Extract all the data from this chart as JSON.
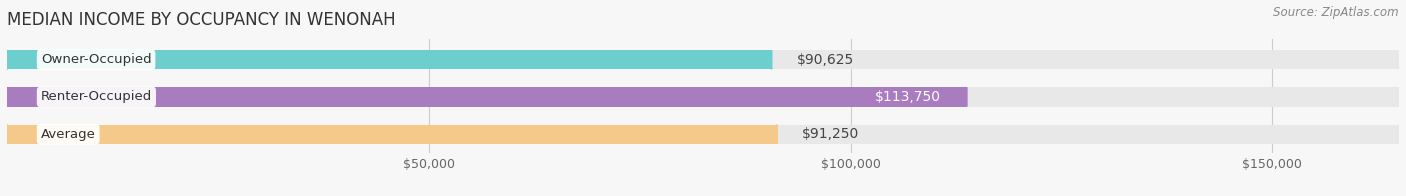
{
  "title": "MEDIAN INCOME BY OCCUPANCY IN WENONAH",
  "source": "Source: ZipAtlas.com",
  "categories": [
    "Owner-Occupied",
    "Renter-Occupied",
    "Average"
  ],
  "values": [
    90625,
    113750,
    91250
  ],
  "bar_colors": [
    "#6dcece",
    "#a87cbe",
    "#f5c98a"
  ],
  "bg_bar_color": "#e8e8e8",
  "value_labels": [
    "$90,625",
    "$113,750",
    "$91,250"
  ],
  "label_inside": [
    false,
    true,
    false
  ],
  "xmax": 165000,
  "xticks": [
    50000,
    100000,
    150000
  ],
  "xtick_labels": [
    "$50,000",
    "$100,000",
    "$150,000"
  ],
  "bar_height": 0.52,
  "title_fontsize": 12,
  "source_fontsize": 8.5,
  "label_fontsize": 10,
  "tick_fontsize": 9,
  "cat_fontsize": 9.5,
  "fig_bg": "#f7f7f7",
  "grid_color": "#cccccc"
}
